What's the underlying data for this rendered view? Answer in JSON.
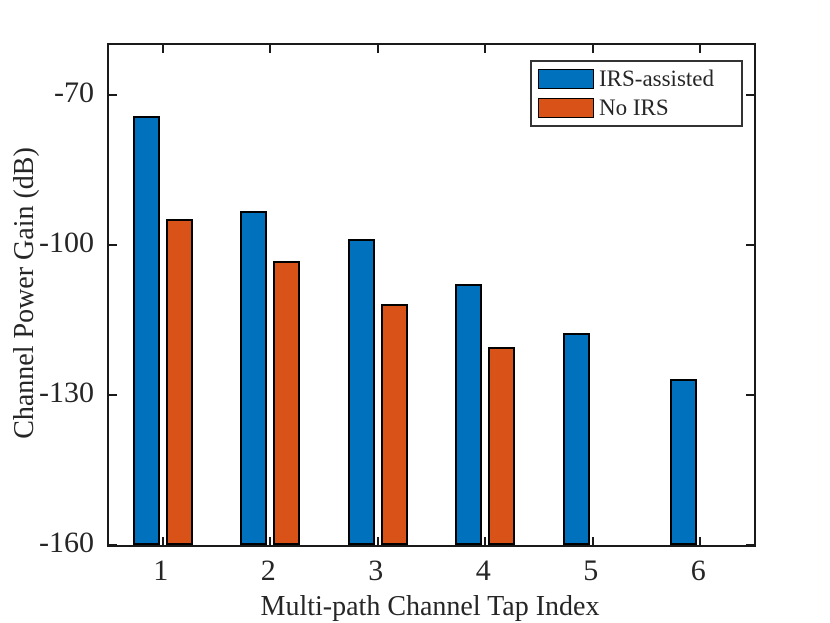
{
  "figure": {
    "background": "#ffffff",
    "axis_color": "#1a1a1a",
    "text_color": "#262626"
  },
  "chart_data": {
    "type": "bar",
    "title": "",
    "xlabel": "Multi-path Channel Tap Index",
    "ylabel": "Channel Power Gain (dB)",
    "categories": [
      1,
      2,
      3,
      4,
      5,
      6
    ],
    "xtick_labels": [
      "1",
      "2",
      "3",
      "4",
      "5",
      "6"
    ],
    "series": [
      {
        "name": "IRS-assisted",
        "color": "#0072BD",
        "values": [
          -74.2,
          -93.2,
          -98.7,
          -107.7,
          -117.5,
          -126.8
        ]
      },
      {
        "name": "No IRS",
        "color": "#D95319",
        "values": [
          -94.7,
          -103.2,
          -111.7,
          -120.3,
          null,
          null
        ]
      }
    ],
    "ylim": [
      -160,
      -60
    ],
    "yticks": [
      -160,
      -130,
      -100,
      -70
    ],
    "ytick_labels": [
      "-160",
      "-130",
      "-100",
      "-70"
    ],
    "grid": false,
    "legend_position": "top-right",
    "bar_edge_color": "#000000"
  }
}
